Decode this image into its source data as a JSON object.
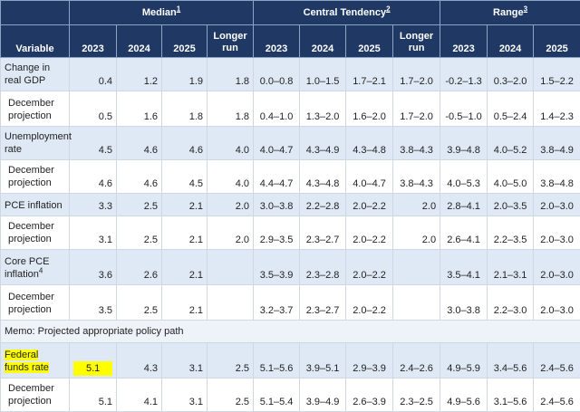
{
  "header": {
    "variable_label": "Variable",
    "groups": [
      {
        "label": "Median",
        "footnote": "1"
      },
      {
        "label": "Central Tendency",
        "footnote": "2"
      },
      {
        "label": "Range",
        "footnote": "3"
      }
    ],
    "median_years": [
      "2023",
      "2024",
      "2025",
      "Longer run"
    ],
    "ct_years": [
      "2023",
      "2024",
      "2025",
      "Longer run"
    ],
    "range_years": [
      "2023",
      "2024",
      "2025"
    ]
  },
  "rows": [
    {
      "label": "Change in real GDP",
      "style": "shade",
      "cells": [
        "0.4",
        "1.2",
        "1.9",
        "1.8",
        "0.0–0.8",
        "1.0–1.5",
        "1.7–2.1",
        "1.7–2.0",
        "-0.2–1.3",
        "0.3–2.0",
        "1.5–2.2"
      ]
    },
    {
      "label": "December projection",
      "style": "plain",
      "cells": [
        "0.5",
        "1.6",
        "1.8",
        "1.8",
        "0.4–1.0",
        "1.3–2.0",
        "1.6–2.0",
        "1.7–2.0",
        "-0.5–1.0",
        "0.5–2.4",
        "1.4–2.3"
      ]
    },
    {
      "label": "Unemployment rate",
      "style": "shade",
      "cells": [
        "4.5",
        "4.6",
        "4.6",
        "4.0",
        "4.0–4.7",
        "4.3–4.9",
        "4.3–4.8",
        "3.8–4.3",
        "3.9–4.8",
        "4.0–5.2",
        "3.8–4.9"
      ]
    },
    {
      "label": "December projection",
      "style": "plain",
      "cells": [
        "4.6",
        "4.6",
        "4.5",
        "4.0",
        "4.4–4.7",
        "4.3–4.8",
        "4.0–4.7",
        "3.8–4.3",
        "4.0–5.3",
        "4.0–5.0",
        "3.8–4.8"
      ]
    },
    {
      "label": "PCE inflation",
      "style": "shade",
      "cells": [
        "3.3",
        "2.5",
        "2.1",
        "2.0",
        "3.0–3.8",
        "2.2–2.8",
        "2.0–2.2",
        "2.0",
        "2.8–4.1",
        "2.0–3.5",
        "2.0–3.0"
      ]
    },
    {
      "label": "December projection",
      "style": "plain",
      "cells": [
        "3.1",
        "2.5",
        "2.1",
        "2.0",
        "2.9–3.5",
        "2.3–2.7",
        "2.0–2.2",
        "2.0",
        "2.6–4.1",
        "2.2–3.5",
        "2.0–3.0"
      ]
    },
    {
      "label": "Core PCE inflation",
      "label_footnote": "4",
      "style": "shade",
      "cells": [
        "3.6",
        "2.6",
        "2.1",
        "",
        "3.5–3.9",
        "2.3–2.8",
        "2.0–2.2",
        "",
        "3.5–4.1",
        "2.1–3.1",
        "2.0–3.0"
      ]
    },
    {
      "label": "December projection",
      "style": "plain",
      "cells": [
        "3.5",
        "2.5",
        "2.1",
        "",
        "3.2–3.7",
        "2.3–2.7",
        "2.0–2.2",
        "",
        "3.0–3.8",
        "2.2–3.0",
        "2.0–3.0"
      ]
    }
  ],
  "memo": "Memo: Projected appropriate policy path",
  "policy_rows": [
    {
      "label": "Federal funds rate",
      "style": "shade",
      "highlight": true,
      "cells": [
        "5.1",
        "4.3",
        "3.1",
        "2.5",
        "5.1–5.6",
        "3.9–5.1",
        "2.9–3.9",
        "2.4–2.6",
        "4.9–5.9",
        "3.4–5.6",
        "2.4–5.6"
      ]
    },
    {
      "label": "December projection",
      "style": "plain",
      "highlight": false,
      "cells": [
        "5.1",
        "4.1",
        "3.1",
        "2.5",
        "5.1–5.4",
        "3.9–4.9",
        "2.6–3.9",
        "2.3–2.5",
        "4.9–5.6",
        "3.1–5.6",
        "2.4–5.6"
      ]
    }
  ],
  "highlight_color": "#ffff00",
  "header_bg": "#1f3864",
  "shade_bg": "#dfe9f5"
}
